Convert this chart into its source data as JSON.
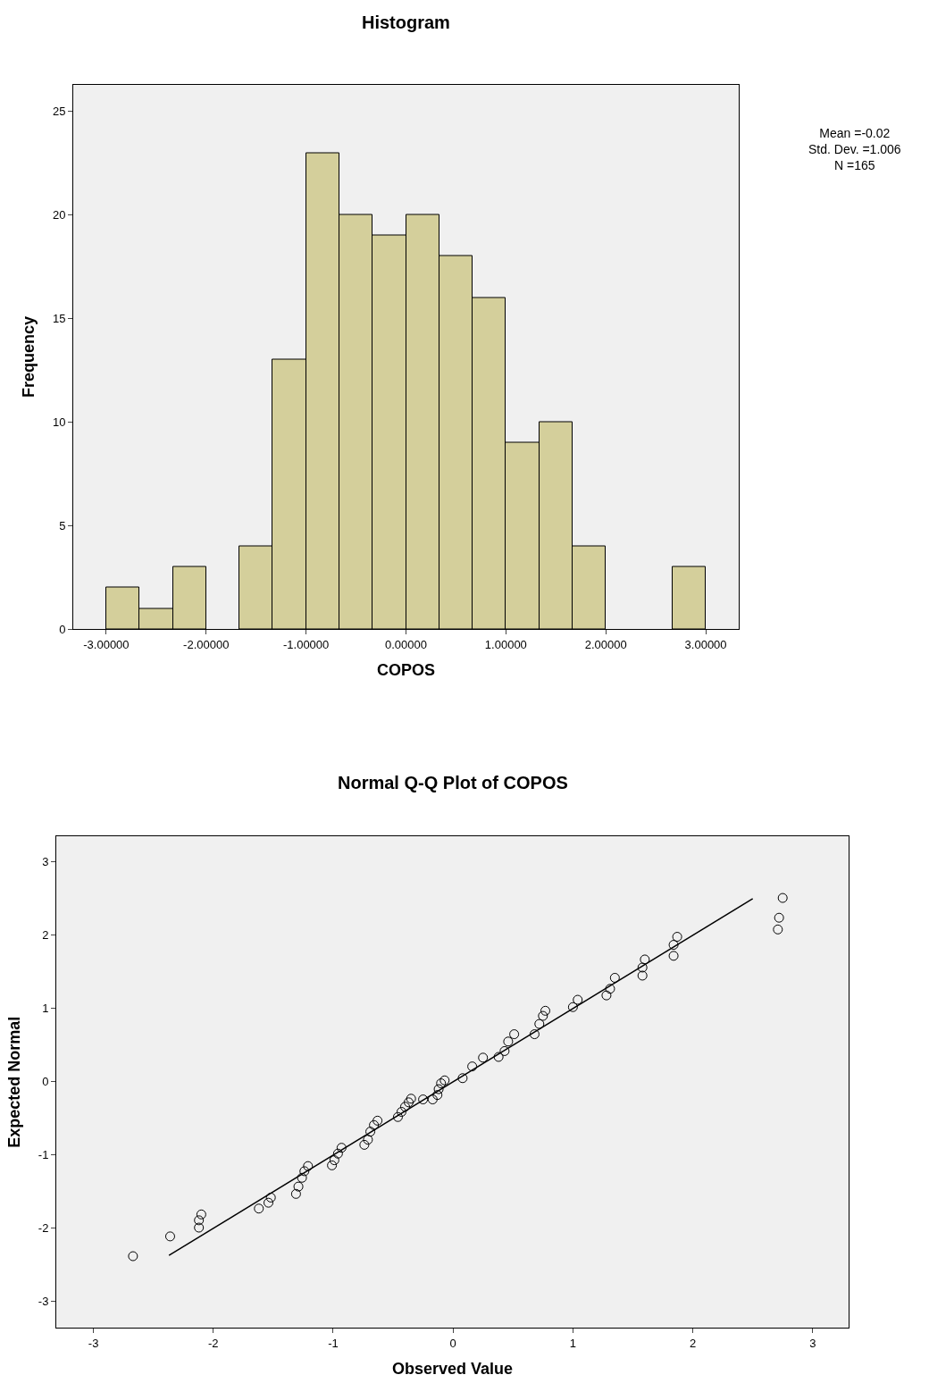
{
  "chart_data": [
    {
      "type": "histogram",
      "title": "Histogram",
      "xlabel": "COPOS",
      "ylabel": "Frequency",
      "color": "#d4cf9b",
      "bins": [
        -3,
        -2.667,
        -2.333,
        -2,
        -1.667,
        -1.333,
        -1,
        -0.667,
        -0.333,
        0,
        0.333,
        0.667,
        1,
        1.333,
        1.667,
        2,
        2.333,
        2.667,
        3
      ],
      "values": [
        2,
        1,
        3,
        0,
        4,
        13,
        23,
        20,
        19,
        20,
        18,
        16,
        9,
        10,
        4,
        0,
        0,
        3
      ],
      "xlim": [
        -3.33,
        3.33
      ],
      "xticks": [
        {
          "value": -3,
          "label": "-3.00000"
        },
        {
          "value": -2,
          "label": "-2.00000"
        },
        {
          "value": -1,
          "label": "-1.00000"
        },
        {
          "value": 0,
          "label": "0.00000"
        },
        {
          "value": 1,
          "label": "1.00000"
        },
        {
          "value": 2,
          "label": "2.00000"
        },
        {
          "value": 3,
          "label": "3.00000"
        }
      ],
      "ylim": [
        0,
        26.3
      ],
      "yticks": [
        0,
        5,
        10,
        15,
        20,
        25
      ],
      "grid": false,
      "annotations": [
        "Mean =-0.02",
        "Std. Dev. =1.006",
        "N =165"
      ]
    },
    {
      "type": "scatter",
      "title": "Normal Q-Q Plot of COPOS",
      "xlabel": "Observed Value",
      "ylabel": "Expected Normal",
      "grid": false,
      "xlim": [
        -3.31,
        3.3
      ],
      "xticks": [
        -3,
        -2,
        -1,
        0,
        1,
        2,
        3
      ],
      "ylim": [
        -3.36,
        3.35
      ],
      "yticks": [
        -3,
        -2,
        -1,
        0,
        1,
        2,
        3
      ],
      "series": [
        {
          "type": "scatter",
          "marker": "circle",
          "color": "#000000",
          "x": [
            -2.67,
            -2.36,
            -2.12,
            -2.12,
            -2.1,
            -1.62,
            -1.54,
            -1.52,
            -1.31,
            -1.29,
            -1.26,
            -1.24,
            -1.21,
            -1.01,
            -0.99,
            -0.96,
            -0.93,
            -0.74,
            -0.71,
            -0.69,
            -0.66,
            -0.63,
            -0.46,
            -0.43,
            -0.4,
            -0.37,
            -0.35,
            -0.25,
            -0.17,
            -0.13,
            -0.12,
            -0.1,
            -0.07,
            0.08,
            0.16,
            0.25,
            0.38,
            0.43,
            0.46,
            0.51,
            0.68,
            0.72,
            0.75,
            0.77,
            1.0,
            1.04,
            1.28,
            1.31,
            1.35,
            1.58,
            1.58,
            1.6,
            1.84,
            1.84,
            1.87,
            2.71,
            2.72,
            2.75
          ],
          "values": [
            -2.38,
            -2.11,
            -1.99,
            -1.89,
            -1.81,
            -1.73,
            -1.65,
            -1.58,
            -1.53,
            -1.43,
            -1.31,
            -1.22,
            -1.15,
            -1.14,
            -1.07,
            -0.98,
            -0.9,
            -0.86,
            -0.79,
            -0.68,
            -0.59,
            -0.53,
            -0.48,
            -0.41,
            -0.34,
            -0.28,
            -0.23,
            -0.24,
            -0.24,
            -0.18,
            -0.1,
            -0.02,
            0.02,
            0.05,
            0.21,
            0.33,
            0.34,
            0.42,
            0.55,
            0.65,
            0.65,
            0.79,
            0.9,
            0.97,
            1.02,
            1.12,
            1.18,
            1.27,
            1.42,
            1.45,
            1.56,
            1.67,
            1.72,
            1.87,
            1.98,
            2.08,
            2.24,
            2.51
          ]
        },
        {
          "type": "line",
          "color": "#000000",
          "x": [
            -2.37,
            2.5
          ],
          "values": [
            -2.37,
            2.5
          ]
        }
      ]
    }
  ]
}
